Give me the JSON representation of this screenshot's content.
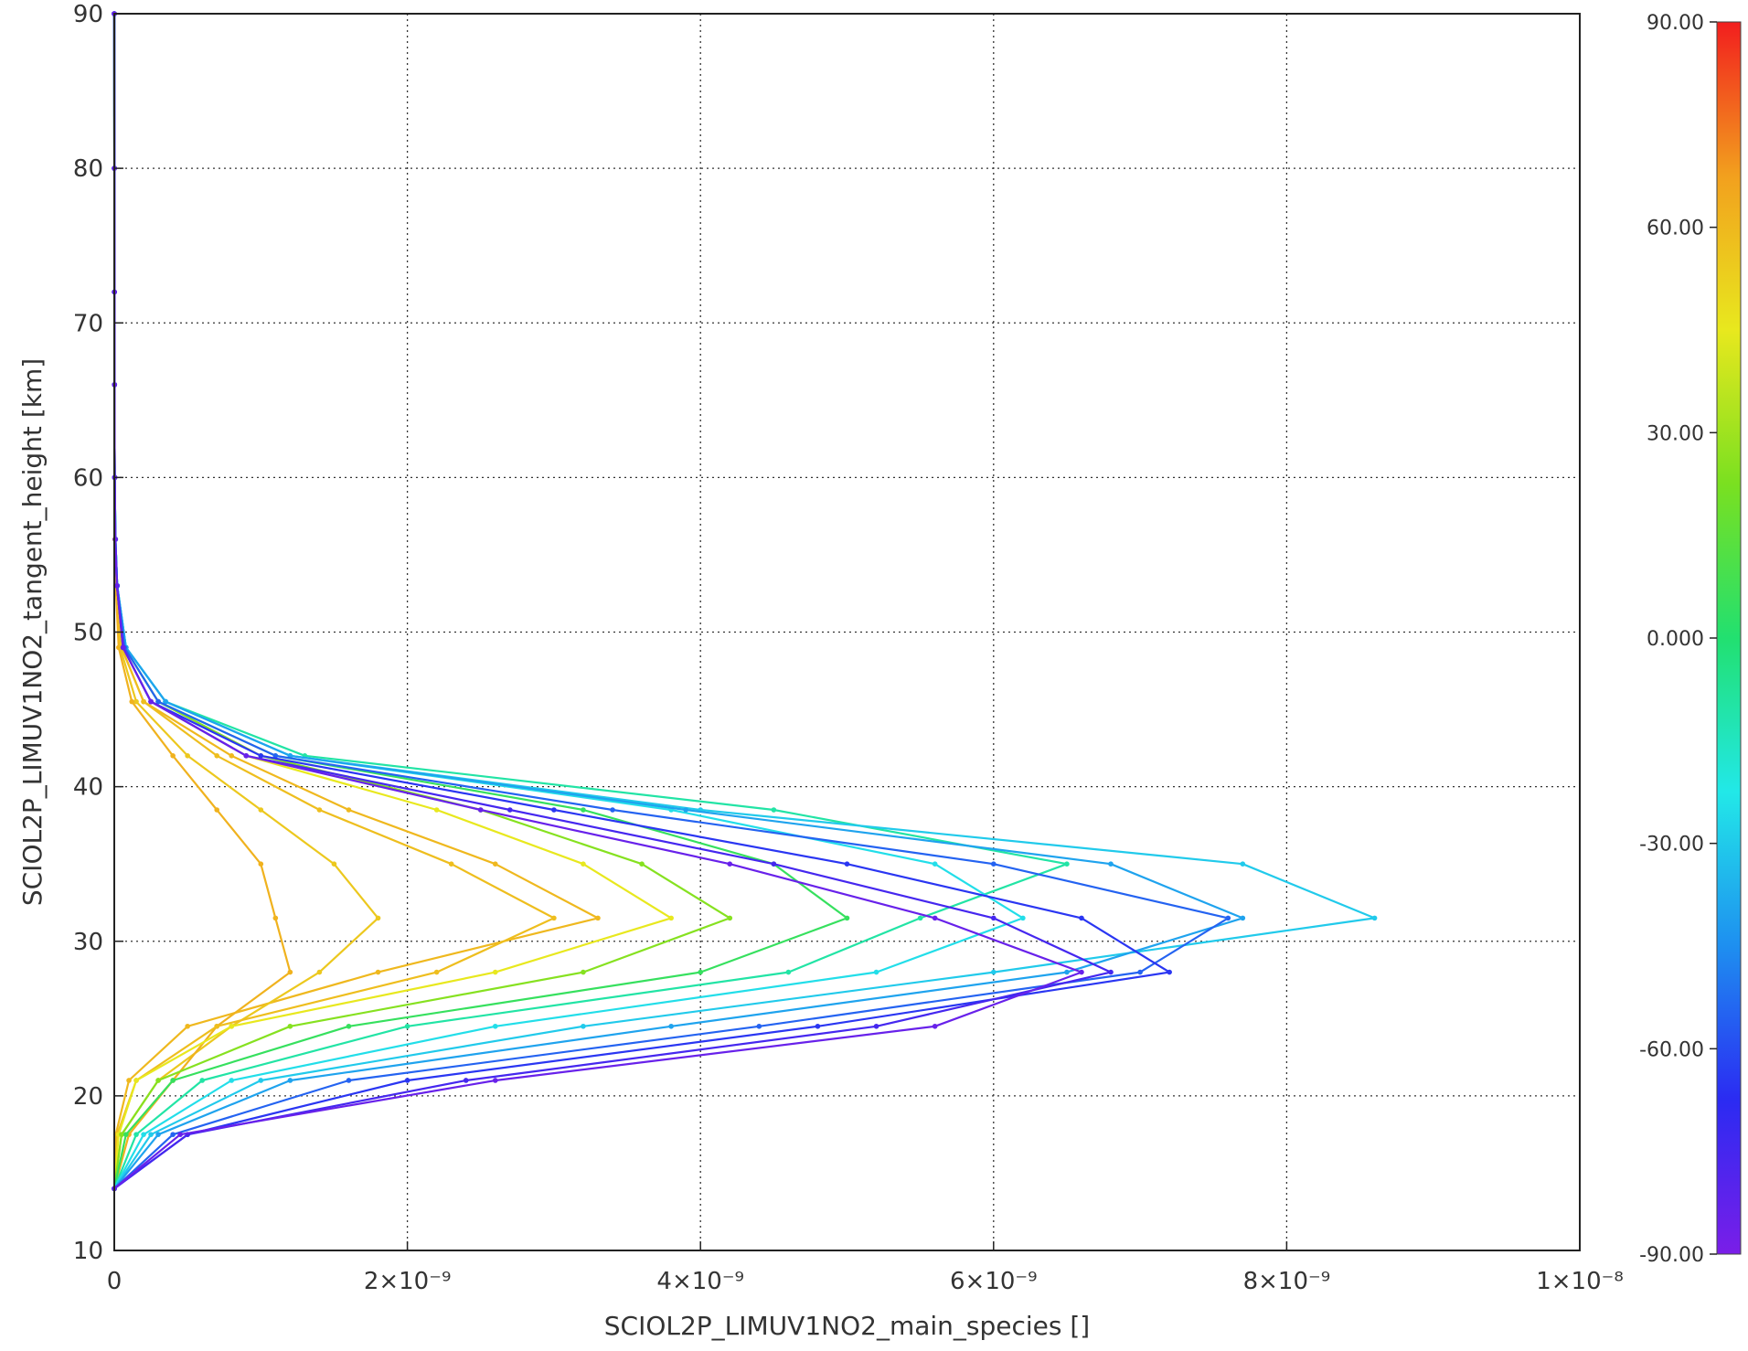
{
  "chart_data": {
    "type": "line",
    "title": "",
    "xlabel": "SCIOL2P_LIMUV1NO2_main_species []",
    "ylabel": "SCIOL2P_LIMUV1NO2_tangent_height [km]",
    "xlim": [
      0,
      1e-08
    ],
    "ylim": [
      10,
      90
    ],
    "x_ticks": [
      0,
      2e-09,
      4e-09,
      6e-09,
      8e-09,
      1e-08
    ],
    "x_tick_labels": [
      "0",
      "2×10⁻⁹",
      "4×10⁻⁹",
      "6×10⁻⁹",
      "8×10⁻⁹",
      "1×10⁻⁸"
    ],
    "y_ticks": [
      10,
      20,
      30,
      40,
      50,
      60,
      70,
      80,
      90
    ],
    "y_tick_labels": [
      "10",
      "20",
      "30",
      "40",
      "50",
      "60",
      "70",
      "80",
      "90"
    ],
    "grid": true,
    "grid_style": "dotted",
    "colorbar": {
      "ticks": [
        -90,
        -60,
        -30,
        0,
        30,
        60,
        90
      ],
      "tick_labels": [
        "-90.00",
        "-60.00",
        "-30.00",
        "0.000",
        "30.00",
        "60.00",
        "90.00"
      ],
      "range": [
        -90,
        90
      ],
      "colormap": [
        "#7a1ee8",
        "#2b2bf2",
        "#1e8ff0",
        "#22e8e8",
        "#22e070",
        "#7ae020",
        "#e8e81e",
        "#f2a01e",
        "#f21e1e"
      ]
    },
    "heights": [
      14,
      17.5,
      21,
      24.5,
      28,
      31.5,
      35,
      38.5,
      42,
      45.5,
      49,
      53,
      56,
      60,
      66,
      72,
      80,
      90
    ],
    "series": [
      {
        "latitude": 60,
        "values": [
          0,
          1e-11,
          1e-10,
          5e-10,
          1.8e-09,
          3.3e-09,
          2.6e-09,
          1.6e-09,
          8e-10,
          2e-10,
          5e-11,
          1.5e-11,
          6e-12,
          3e-12,
          1.5e-12,
          1e-12,
          5e-13,
          0
        ]
      },
      {
        "latitude": 55,
        "values": [
          0,
          5e-11,
          3e-10,
          8e-10,
          1.4e-09,
          1.8e-09,
          1.5e-09,
          1e-09,
          5e-10,
          1.5e-10,
          4e-11,
          1.2e-11,
          5e-12,
          3e-12,
          1.5e-12,
          1e-12,
          5e-13,
          0
        ]
      },
      {
        "latitude": 62,
        "values": [
          0,
          1e-10,
          4e-10,
          7e-10,
          1.2e-09,
          1.1e-09,
          1e-09,
          7e-10,
          4e-10,
          1.2e-10,
          3e-11,
          1e-11,
          5e-12,
          3e-12,
          1.5e-12,
          1e-12,
          5e-13,
          0
        ]
      },
      {
        "latitude": 58,
        "values": [
          0,
          2e-11,
          1.5e-10,
          7e-10,
          2.2e-09,
          3e-09,
          2.3e-09,
          1.4e-09,
          7e-10,
          2e-10,
          5e-11,
          1.5e-11,
          6e-12,
          3e-12,
          1.5e-12,
          1e-12,
          5e-13,
          0
        ]
      },
      {
        "latitude": 45,
        "values": [
          0,
          3e-11,
          1.5e-10,
          8e-10,
          2.6e-09,
          3.8e-09,
          3.2e-09,
          2.2e-09,
          9e-10,
          2.5e-10,
          6e-11,
          1.8e-11,
          7e-12,
          3e-12,
          1.5e-12,
          1e-12,
          5e-13,
          0
        ]
      },
      {
        "latitude": 25,
        "values": [
          0,
          5e-11,
          3e-10,
          1.2e-09,
          3.2e-09,
          4.2e-09,
          3.6e-09,
          2.5e-09,
          1e-09,
          3e-10,
          7e-11,
          2e-11,
          8e-12,
          3e-12,
          1.5e-12,
          1e-12,
          5e-13,
          0
        ]
      },
      {
        "latitude": 5,
        "values": [
          0,
          8e-11,
          4e-10,
          1.6e-09,
          4e-09,
          5e-09,
          4.5e-09,
          3.2e-09,
          1.1e-09,
          3e-10,
          7e-11,
          2e-11,
          8e-12,
          3e-12,
          1.5e-12,
          1e-12,
          5e-13,
          0
        ]
      },
      {
        "latitude": -10,
        "values": [
          0,
          1.5e-10,
          6e-10,
          2e-09,
          4.6e-09,
          5.5e-09,
          6.5e-09,
          4.5e-09,
          1.3e-09,
          3.5e-10,
          8e-11,
          2e-11,
          8e-12,
          3e-12,
          1.5e-12,
          1e-12,
          5e-13,
          0
        ]
      },
      {
        "latitude": -25,
        "values": [
          0,
          2e-10,
          8e-10,
          2.6e-09,
          5.2e-09,
          6.2e-09,
          5.6e-09,
          3.8e-09,
          1.2e-09,
          3.5e-10,
          8e-11,
          2e-11,
          8e-12,
          3e-12,
          1.5e-12,
          1e-12,
          5e-13,
          0
        ]
      },
      {
        "latitude": -30,
        "values": [
          0,
          2.5e-10,
          1e-09,
          3.2e-09,
          6e-09,
          8.6e-09,
          7.7e-09,
          4e-09,
          1.2e-09,
          3.5e-10,
          8e-11,
          2e-11,
          8e-12,
          3e-12,
          1.5e-12,
          1e-12,
          5e-13,
          0
        ]
      },
      {
        "latitude": -40,
        "values": [
          0,
          3e-10,
          1.2e-09,
          3.8e-09,
          6.5e-09,
          7.7e-09,
          6.8e-09,
          3.9e-09,
          1.2e-09,
          3.5e-10,
          8e-11,
          2e-11,
          8e-12,
          3e-12,
          1.5e-12,
          1e-12,
          5e-13,
          0
        ]
      },
      {
        "latitude": -55,
        "values": [
          0,
          4e-10,
          1.6e-09,
          4.4e-09,
          7e-09,
          7.6e-09,
          6e-09,
          3.4e-09,
          1.1e-09,
          3e-10,
          7e-11,
          2e-11,
          8e-12,
          3e-12,
          1.5e-12,
          1e-12,
          5e-13,
          0
        ]
      },
      {
        "latitude": -65,
        "values": [
          0,
          5e-10,
          2e-09,
          4.8e-09,
          7.2e-09,
          6.6e-09,
          5e-09,
          3e-09,
          1e-09,
          2.5e-10,
          6e-11,
          1.8e-11,
          7e-12,
          3e-12,
          1.5e-12,
          1e-12,
          5e-13,
          0
        ]
      },
      {
        "latitude": -75,
        "values": [
          0,
          5e-10,
          2.4e-09,
          5.2e-09,
          6.8e-09,
          6e-09,
          4.5e-09,
          2.7e-09,
          9e-10,
          2.5e-10,
          6e-11,
          1.8e-11,
          7e-12,
          3e-12,
          1.5e-12,
          1e-12,
          5e-13,
          0
        ]
      },
      {
        "latitude": -85,
        "values": [
          0,
          4.5e-10,
          2.6e-09,
          5.6e-09,
          6.6e-09,
          5.6e-09,
          4.2e-09,
          2.5e-09,
          9e-10,
          2.5e-10,
          6e-11,
          1.8e-11,
          7e-12,
          3e-12,
          1.5e-12,
          1e-12,
          5e-13,
          0
        ]
      }
    ]
  }
}
